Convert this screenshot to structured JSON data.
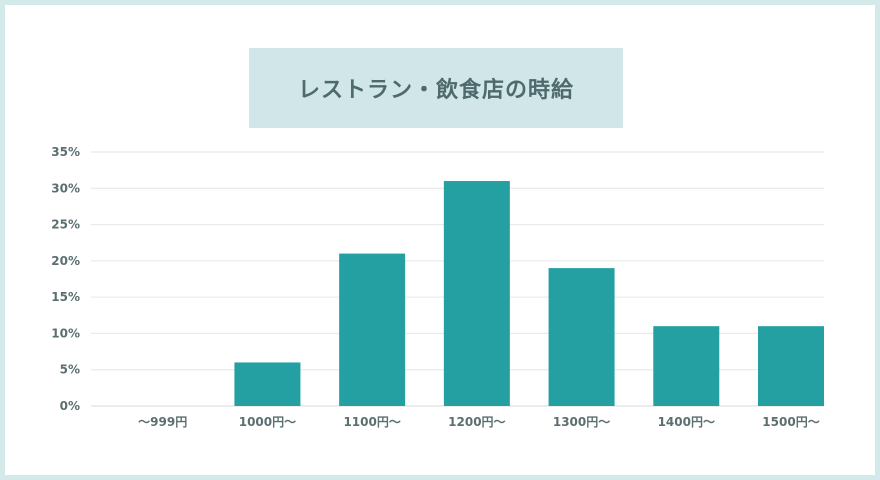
{
  "chart_data": {
    "type": "bar",
    "title": "レストラン・飲食店の時給",
    "categories": [
      "〜999円",
      "1000円〜",
      "1100円〜",
      "1200円〜",
      "1300円〜",
      "1400円〜",
      "1500円〜"
    ],
    "values": [
      0,
      6,
      21,
      31,
      19,
      11,
      11
    ],
    "y_ticks": [
      "0%",
      "5%",
      "10%",
      "15%",
      "20%",
      "25%",
      "30%",
      "35%"
    ],
    "ylim": [
      0,
      35
    ],
    "xlabel": "",
    "ylabel": "",
    "grid": true,
    "legend": "none",
    "colors": {
      "bar": "#24a0a2",
      "grid": "#e6e6e6",
      "title_bg": "#d1e6e8",
      "frame": "#d3e9ea"
    }
  }
}
